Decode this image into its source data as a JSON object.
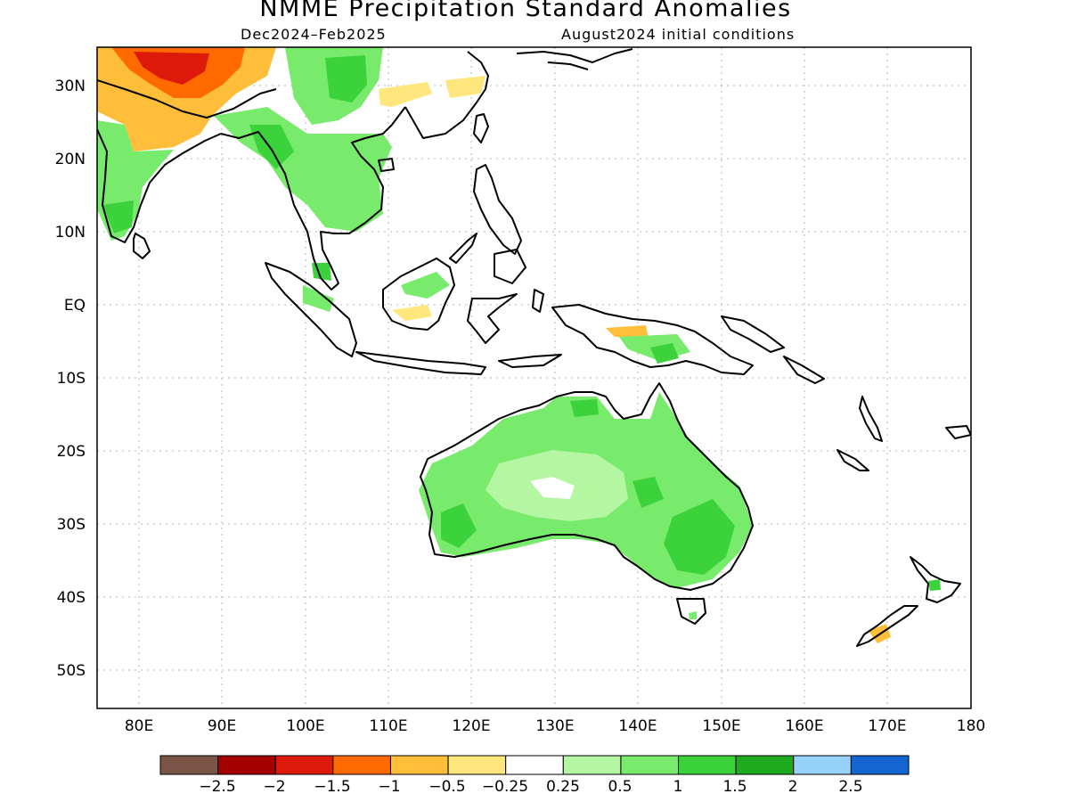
{
  "title": "NMME Precipitation Standard Anomalies",
  "period": "Dec2024–Feb2025",
  "initial_conditions": "August2024 initial conditions",
  "lat_ticks": [
    "30N",
    "20N",
    "10N",
    "EQ",
    "10S",
    "20S",
    "30S",
    "40S",
    "50S"
  ],
  "lon_ticks": [
    "80E",
    "90E",
    "100E",
    "110E",
    "120E",
    "130E",
    "140E",
    "150E",
    "160E",
    "170E",
    "180"
  ],
  "colorbar": {
    "colors": [
      "#7a5446",
      "#a40000",
      "#dd1a0a",
      "#ff6a00",
      "#ffbe3a",
      "#ffe77d",
      "#ffffff",
      "#b4f6a2",
      "#78ea6c",
      "#3cd23c",
      "#1eaa1e",
      "#96d2fa",
      "#1464d2"
    ],
    "labels": [
      "−2.5",
      "−2",
      "−1.5",
      "−1",
      "−0.5",
      "−0.25",
      "0.25",
      "0.5",
      "1",
      "1.5",
      "2",
      "2.5"
    ]
  }
}
